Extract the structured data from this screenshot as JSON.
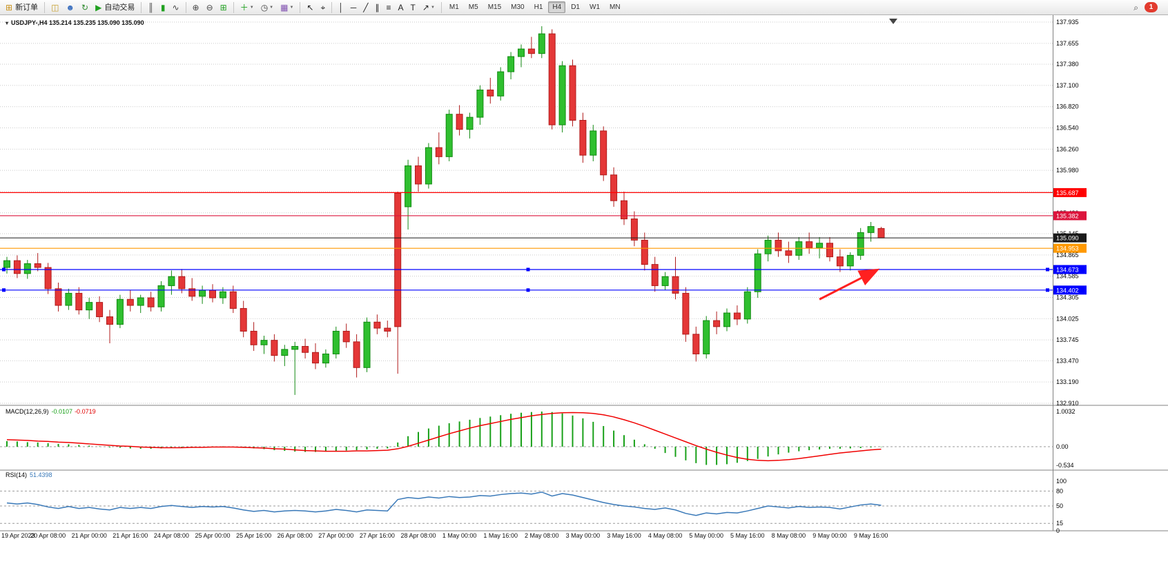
{
  "toolbar": {
    "dropdown_caret": "▼",
    "timeframes": [
      "M1",
      "M5",
      "M15",
      "M30",
      "H1",
      "H4",
      "D1",
      "W1",
      "MN"
    ],
    "active_timeframe": "H4",
    "notification_count": "1",
    "items": [
      {
        "base": "new-order",
        "glyph": "⊞",
        "color": "#c89018",
        "label": "新订单"
      },
      {
        "sep": true
      },
      {
        "base": "charts",
        "glyph": "◫",
        "color": "#c8a030"
      },
      {
        "base": "community",
        "glyph": "☻",
        "color": "#3b6fbf"
      },
      {
        "base": "refresh",
        "glyph": "↻",
        "color": "#2e8b2e"
      },
      {
        "base": "autotrading",
        "glyph": "▶",
        "color": "#21a121",
        "label": "自动交易"
      },
      {
        "sep": true
      },
      {
        "base": "bar-chart",
        "glyph": "║",
        "color": "#444444"
      },
      {
        "base": "candlestick-chart",
        "glyph": "▮",
        "color": "#21a121"
      },
      {
        "base": "line-chart",
        "glyph": "∿",
        "color": "#444444"
      },
      {
        "sep": true
      },
      {
        "base": "zoom-in",
        "glyph": "⊕",
        "color": "#444444"
      },
      {
        "base": "zoom-out",
        "glyph": "⊖",
        "color": "#444444"
      },
      {
        "base": "tile-windows",
        "glyph": "⊞",
        "color": "#21a121"
      },
      {
        "sep": true
      },
      {
        "base": "indicators",
        "glyph": "＋",
        "color": "#21a121",
        "dropdown": true
      },
      {
        "base": "periods",
        "glyph": "◷",
        "color": "#444444",
        "dropdown": true
      },
      {
        "base": "templates",
        "glyph": "▦",
        "color": "#8050b0",
        "dropdown": true
      },
      {
        "sep": true
      },
      {
        "base": "cursor",
        "glyph": "↖",
        "color": "#222222"
      },
      {
        "base": "crosshair",
        "glyph": "⌖",
        "color": "#222222"
      },
      {
        "sep": true
      },
      {
        "base": "vertical-line",
        "glyph": "│",
        "color": "#222222"
      },
      {
        "base": "horizontal-line",
        "glyph": "─",
        "color": "#222222"
      },
      {
        "base": "trendline",
        "glyph": "╱",
        "color": "#222222"
      },
      {
        "base": "channel",
        "glyph": "∥",
        "color": "#222222"
      },
      {
        "base": "fibonacci",
        "glyph": "≡",
        "color": "#222222"
      },
      {
        "base": "text",
        "glyph": "A",
        "color": "#222222"
      },
      {
        "base": "text-label",
        "glyph": "T",
        "color": "#222222"
      },
      {
        "base": "arrows",
        "glyph": "↗",
        "color": "#222222",
        "dropdown": true
      },
      {
        "sep": true
      },
      {
        "timeframes": true
      },
      {
        "spacer": true
      },
      {
        "base": "search",
        "glyph": "⌕",
        "color": "#444444"
      },
      {
        "badge": true,
        "label": "1"
      }
    ]
  },
  "chart": {
    "menu_icon": "▾",
    "symbol_line": "USDJPY-,H4 135.214 135.235 135.090 135.090"
  },
  "chart_data": {
    "type": "candlestick",
    "symbol": "USDJPY-",
    "timeframe": "H4",
    "current_ohlc": {
      "open": 135.214,
      "high": 135.235,
      "low": 135.09,
      "close": 135.09
    },
    "ylim": [
      132.91,
      137.935
    ],
    "colors": {
      "bull": "#2fbf2f",
      "bull_stroke": "#128a12",
      "bear": "#e43737",
      "bear_stroke": "#b01c1c",
      "macd_hist": "#18a018",
      "macd_signal": "#f00000",
      "rsi_line": "#3878b8",
      "grid": "#c9c9c9",
      "panel_border": "#808080"
    },
    "price_ticks": [
      "137.935",
      "137.655",
      "137.380",
      "137.100",
      "136.820",
      "136.540",
      "136.260",
      "135.980",
      "135.700",
      "135.420",
      "135.145",
      "134.865",
      "134.585",
      "134.305",
      "134.025",
      "133.745",
      "133.470",
      "133.190",
      "132.910"
    ],
    "hlines": [
      {
        "price": 135.687,
        "color": "#ff0000",
        "label": "135.687",
        "name": "resistance-line-1"
      },
      {
        "price": 135.382,
        "color": "#dc143c",
        "label": "135.382",
        "name": "resistance-line-2"
      },
      {
        "price": 135.09,
        "color": "#1a1a1a",
        "label": "135.090",
        "name": "bid-price-line",
        "bid": true
      },
      {
        "price": 134.953,
        "color": "#ff9900",
        "label": "134.953",
        "name": "pivot-line"
      },
      {
        "price": 134.673,
        "color": "#0000ff",
        "label": "134.673",
        "name": "support-line-1",
        "handles": true
      },
      {
        "price": 134.402,
        "color": "#0000ff",
        "label": "134.402",
        "name": "support-line-2",
        "handles": true
      }
    ],
    "arrow": {
      "from_index": 79,
      "from_price": 134.28,
      "to_index": 84.5,
      "to_price": 134.66,
      "color": "#ff2020"
    },
    "x_labels": [
      {
        "text": "19 Apr 2023",
        "index": 0
      },
      {
        "text": "20 Apr 08:00",
        "index": 4
      },
      {
        "text": "21 Apr 00:00",
        "index": 8
      },
      {
        "text": "21 Apr 16:00",
        "index": 12
      },
      {
        "text": "24 Apr 08:00",
        "index": 16
      },
      {
        "text": "25 Apr 00:00",
        "index": 20
      },
      {
        "text": "25 Apr 16:00",
        "index": 24
      },
      {
        "text": "26 Apr 08:00",
        "index": 28
      },
      {
        "text": "27 Apr 00:00",
        "index": 32
      },
      {
        "text": "27 Apr 16:00",
        "index": 36
      },
      {
        "text": "28 Apr 08:00",
        "index": 40
      },
      {
        "text": "1 May 00:00",
        "index": 44
      },
      {
        "text": "1 May 16:00",
        "index": 48
      },
      {
        "text": "2 May 08:00",
        "index": 52
      },
      {
        "text": "3 May 00:00",
        "index": 56
      },
      {
        "text": "3 May 16:00",
        "index": 60
      },
      {
        "text": "4 May 08:00",
        "index": 64
      },
      {
        "text": "5 May 00:00",
        "index": 68
      },
      {
        "text": "5 May 16:00",
        "index": 72
      },
      {
        "text": "8 May 08:00",
        "index": 76
      },
      {
        "text": "9 May 00:00",
        "index": 80
      },
      {
        "text": "9 May 16:00",
        "index": 84
      }
    ],
    "candles": [
      [
        134.7,
        134.84,
        134.62,
        134.79
      ],
      [
        134.79,
        134.86,
        134.56,
        134.62
      ],
      [
        134.62,
        134.8,
        134.55,
        134.75
      ],
      [
        134.75,
        134.89,
        134.65,
        134.7
      ],
      [
        134.7,
        134.76,
        134.35,
        134.42
      ],
      [
        134.42,
        134.5,
        134.12,
        134.2
      ],
      [
        134.2,
        134.42,
        134.14,
        134.36
      ],
      [
        134.36,
        134.44,
        134.08,
        134.14
      ],
      [
        134.14,
        134.3,
        134.02,
        134.24
      ],
      [
        134.24,
        134.32,
        133.98,
        134.05
      ],
      [
        134.05,
        134.14,
        133.7,
        133.95
      ],
      [
        133.95,
        134.34,
        133.9,
        134.28
      ],
      [
        134.28,
        134.4,
        134.12,
        134.2
      ],
      [
        134.2,
        134.34,
        134.1,
        134.3
      ],
      [
        134.3,
        134.38,
        134.12,
        134.18
      ],
      [
        134.18,
        134.52,
        134.12,
        134.46
      ],
      [
        134.46,
        134.66,
        134.34,
        134.58
      ],
      [
        134.58,
        134.68,
        134.36,
        134.42
      ],
      [
        134.42,
        134.56,
        134.26,
        134.32
      ],
      [
        134.32,
        134.46,
        134.22,
        134.4
      ],
      [
        134.4,
        134.48,
        134.24,
        134.3
      ],
      [
        134.3,
        134.44,
        134.22,
        134.38
      ],
      [
        134.38,
        134.46,
        134.1,
        134.16
      ],
      [
        134.16,
        134.26,
        133.78,
        133.86
      ],
      [
        133.86,
        133.98,
        133.6,
        133.68
      ],
      [
        133.68,
        133.8,
        133.56,
        133.74
      ],
      [
        133.74,
        133.82,
        133.46,
        133.54
      ],
      [
        133.54,
        133.68,
        133.4,
        133.62
      ],
      [
        133.62,
        133.72,
        133.02,
        133.66
      ],
      [
        133.66,
        133.76,
        133.5,
        133.58
      ],
      [
        133.58,
        133.7,
        133.36,
        133.44
      ],
      [
        133.44,
        133.62,
        133.38,
        133.56
      ],
      [
        133.56,
        133.92,
        133.5,
        133.86
      ],
      [
        133.86,
        133.96,
        133.64,
        133.72
      ],
      [
        133.72,
        133.82,
        133.25,
        133.38
      ],
      [
        133.38,
        134.04,
        133.32,
        133.98
      ],
      [
        133.98,
        134.08,
        133.82,
        133.9
      ],
      [
        133.9,
        134.0,
        133.78,
        133.86
      ],
      [
        135.68,
        135.7,
        133.3,
        133.92
      ],
      [
        135.5,
        136.12,
        135.2,
        136.04
      ],
      [
        136.04,
        136.16,
        135.7,
        135.8
      ],
      [
        135.8,
        136.34,
        135.74,
        136.28
      ],
      [
        136.28,
        136.48,
        136.06,
        136.16
      ],
      [
        136.16,
        136.78,
        136.1,
        136.72
      ],
      [
        136.72,
        136.84,
        136.44,
        136.52
      ],
      [
        136.52,
        136.74,
        136.4,
        136.68
      ],
      [
        136.68,
        137.1,
        136.58,
        137.04
      ],
      [
        137.04,
        137.2,
        136.86,
        136.96
      ],
      [
        136.96,
        137.34,
        136.9,
        137.28
      ],
      [
        137.28,
        137.54,
        137.18,
        137.48
      ],
      [
        137.48,
        137.64,
        137.34,
        137.58
      ],
      [
        137.58,
        137.74,
        137.46,
        137.52
      ],
      [
        137.52,
        137.88,
        137.46,
        137.78
      ],
      [
        137.78,
        137.84,
        136.52,
        136.58
      ],
      [
        136.58,
        137.42,
        136.48,
        137.36
      ],
      [
        137.36,
        137.44,
        136.56,
        136.64
      ],
      [
        136.64,
        136.74,
        136.08,
        136.18
      ],
      [
        136.18,
        136.58,
        136.1,
        136.5
      ],
      [
        136.5,
        136.56,
        135.84,
        135.92
      ],
      [
        135.92,
        136.02,
        135.5,
        135.58
      ],
      [
        135.58,
        135.7,
        135.26,
        135.34
      ],
      [
        135.34,
        135.44,
        134.98,
        135.06
      ],
      [
        135.06,
        135.16,
        134.66,
        134.74
      ],
      [
        134.74,
        134.84,
        134.38,
        134.46
      ],
      [
        134.46,
        134.64,
        134.4,
        134.58
      ],
      [
        134.58,
        134.84,
        134.28,
        134.36
      ],
      [
        134.36,
        134.44,
        133.72,
        133.82
      ],
      [
        133.82,
        133.92,
        133.46,
        133.56
      ],
      [
        133.56,
        134.06,
        133.5,
        134.0
      ],
      [
        134.0,
        134.12,
        133.82,
        133.92
      ],
      [
        133.92,
        134.16,
        133.86,
        134.1
      ],
      [
        134.1,
        134.2,
        133.94,
        134.02
      ],
      [
        134.02,
        134.44,
        133.96,
        134.38
      ],
      [
        134.38,
        134.94,
        134.3,
        134.88
      ],
      [
        134.88,
        135.12,
        134.78,
        135.06
      ],
      [
        135.06,
        135.16,
        134.84,
        134.92
      ],
      [
        134.92,
        135.04,
        134.76,
        134.86
      ],
      [
        134.86,
        135.1,
        134.8,
        135.04
      ],
      [
        135.04,
        135.16,
        134.88,
        134.96
      ],
      [
        134.96,
        135.1,
        134.82,
        135.02
      ],
      [
        135.02,
        135.1,
        134.78,
        134.84
      ],
      [
        134.84,
        134.94,
        134.64,
        134.72
      ],
      [
        134.72,
        134.9,
        134.66,
        134.86
      ],
      [
        134.86,
        135.22,
        134.8,
        135.16
      ],
      [
        135.16,
        135.3,
        135.04,
        135.24
      ],
      [
        135.214,
        135.235,
        135.09,
        135.09
      ]
    ],
    "indicators": {
      "macd": {
        "title": "MACD(12,26,9)",
        "value_main": "-0.0107",
        "value_signal": "-0.0719",
        "axis_ticks": [
          {
            "v": 1.0032,
            "label": "1.0032"
          },
          {
            "v": 0,
            "label": "0.00"
          },
          {
            "v": -0.534,
            "label": "-0.534"
          }
        ],
        "histogram": [
          0.16,
          0.15,
          0.13,
          0.12,
          0.1,
          0.08,
          0.07,
          0.05,
          0.03,
          0.01,
          -0.02,
          -0.03,
          -0.05,
          -0.06,
          -0.06,
          -0.05,
          -0.03,
          -0.02,
          -0.01,
          0.0,
          0.01,
          0.01,
          0.0,
          -0.02,
          -0.05,
          -0.07,
          -0.1,
          -0.12,
          -0.14,
          -0.15,
          -0.15,
          -0.14,
          -0.12,
          -0.11,
          -0.1,
          -0.08,
          -0.06,
          -0.05,
          0.12,
          0.3,
          0.42,
          0.52,
          0.6,
          0.67,
          0.72,
          0.77,
          0.82,
          0.86,
          0.9,
          0.94,
          0.97,
          0.99,
          1.0032,
          0.99,
          0.95,
          0.89,
          0.81,
          0.71,
          0.59,
          0.46,
          0.33,
          0.2,
          0.07,
          -0.06,
          -0.18,
          -0.29,
          -0.39,
          -0.47,
          -0.52,
          -0.52,
          -0.5,
          -0.46,
          -0.41,
          -0.35,
          -0.28,
          -0.22,
          -0.17,
          -0.13,
          -0.1,
          -0.08,
          -0.06,
          -0.06,
          -0.05,
          -0.04,
          -0.02,
          -0.0107
        ],
        "signal": [
          0.2,
          0.19,
          0.18,
          0.16,
          0.15,
          0.13,
          0.12,
          0.1,
          0.08,
          0.06,
          0.04,
          0.02,
          0.01,
          -0.01,
          -0.02,
          -0.03,
          -0.03,
          -0.03,
          -0.02,
          -0.02,
          -0.01,
          -0.01,
          -0.01,
          -0.02,
          -0.03,
          -0.04,
          -0.06,
          -0.07,
          -0.09,
          -0.11,
          -0.12,
          -0.13,
          -0.13,
          -0.13,
          -0.12,
          -0.12,
          -0.11,
          -0.1,
          -0.06,
          0.01,
          0.1,
          0.19,
          0.28,
          0.37,
          0.45,
          0.53,
          0.6,
          0.66,
          0.72,
          0.78,
          0.83,
          0.88,
          0.92,
          0.95,
          0.97,
          0.975,
          0.97,
          0.95,
          0.91,
          0.85,
          0.77,
          0.68,
          0.58,
          0.47,
          0.36,
          0.25,
          0.14,
          0.03,
          -0.07,
          -0.16,
          -0.24,
          -0.31,
          -0.36,
          -0.39,
          -0.4,
          -0.39,
          -0.37,
          -0.34,
          -0.3,
          -0.26,
          -0.22,
          -0.18,
          -0.15,
          -0.12,
          -0.09,
          -0.0719
        ]
      },
      "rsi": {
        "title": "RSI(14)",
        "value": "51.4398",
        "levels": [
          80,
          50,
          15
        ],
        "axis_ticks": [
          {
            "v": 100,
            "label": "100"
          },
          {
            "v": 80,
            "label": "80"
          },
          {
            "v": 50,
            "label": "50"
          },
          {
            "v": 15,
            "label": "15"
          },
          {
            "v": 0,
            "label": "0"
          }
        ],
        "series": [
          56,
          54,
          56,
          53,
          48,
          45,
          49,
          45,
          47,
          44,
          42,
          47,
          45,
          47,
          45,
          49,
          51,
          49,
          47,
          49,
          48,
          49,
          46,
          42,
          39,
          41,
          38,
          40,
          41,
          40,
          38,
          40,
          43,
          41,
          38,
          42,
          41,
          40,
          63,
          67,
          65,
          68,
          66,
          69,
          67,
          68,
          71,
          70,
          73,
          75,
          76,
          74,
          78,
          70,
          75,
          72,
          67,
          62,
          57,
          53,
          50,
          48,
          45,
          43,
          46,
          42,
          35,
          31,
          36,
          34,
          37,
          36,
          40,
          45,
          50,
          48,
          46,
          49,
          47,
          48,
          47,
          44,
          48,
          52,
          54,
          51.4398
        ]
      }
    }
  }
}
